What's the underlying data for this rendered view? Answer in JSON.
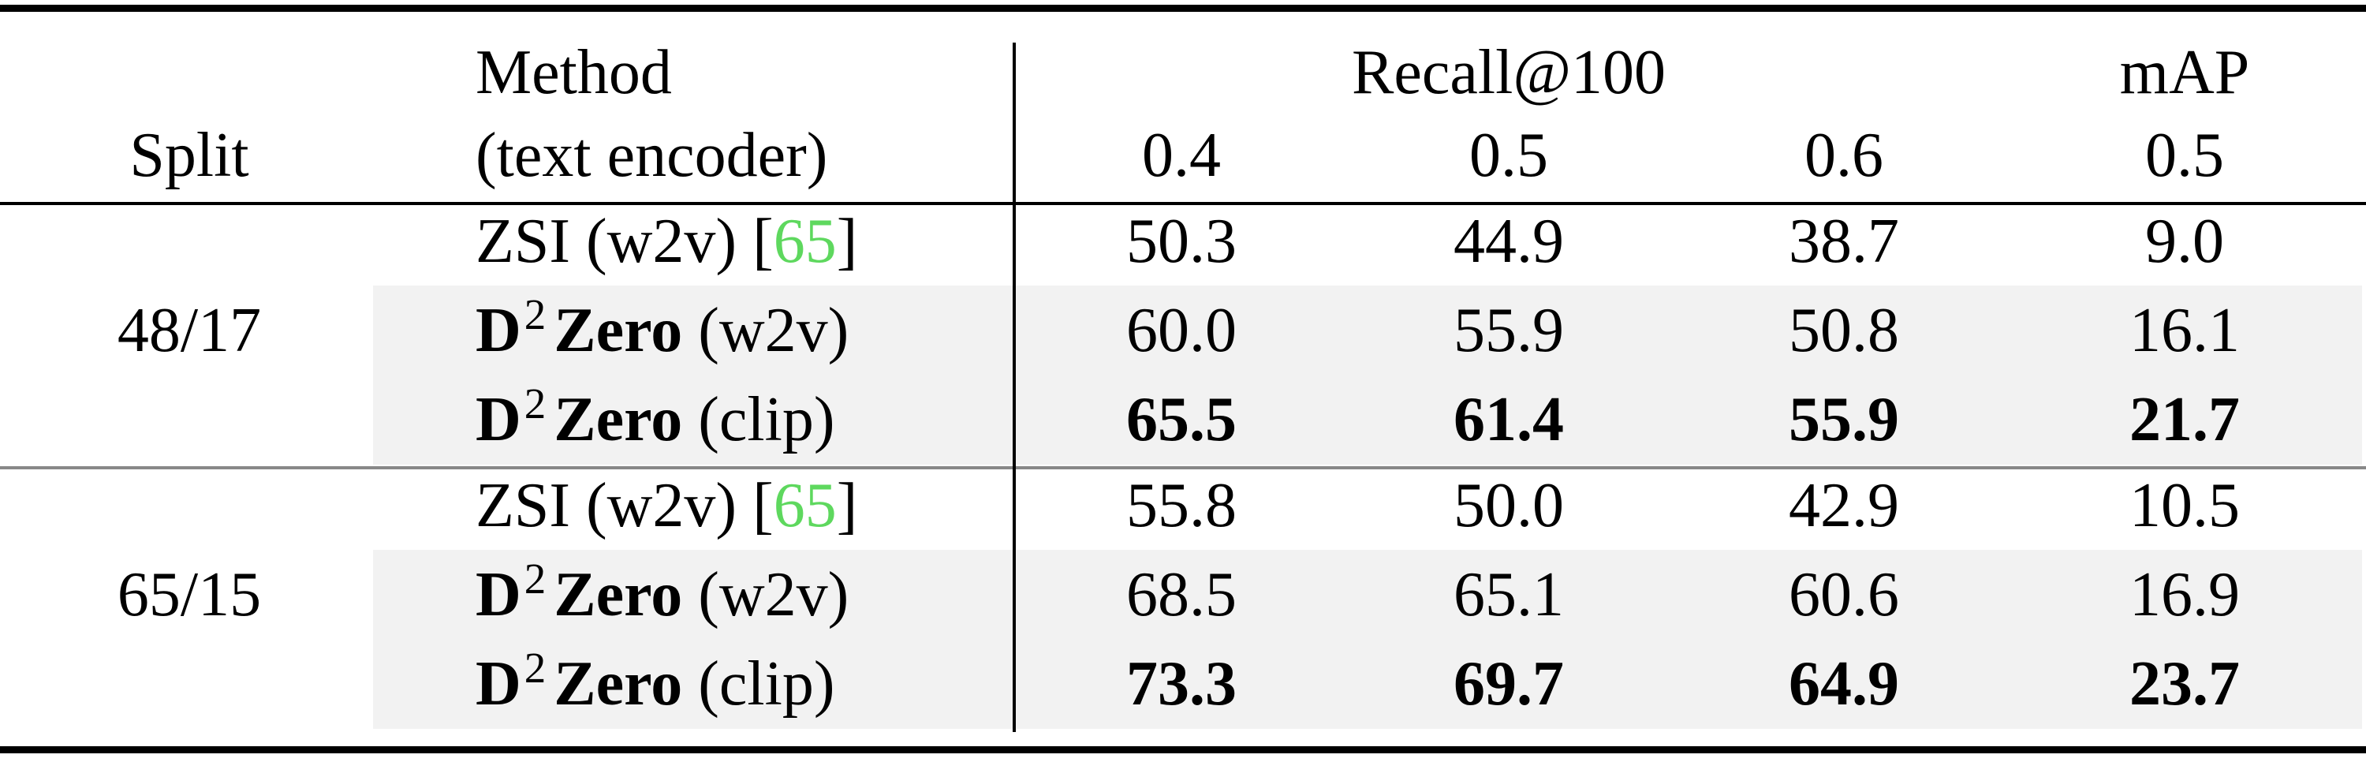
{
  "table": {
    "header": {
      "split": "Split",
      "method": "Method",
      "method_sub": "(text encoder)",
      "recall": "Recall@100",
      "map": "mAP",
      "thresholds": [
        "0.4",
        "0.5",
        "0.6",
        "0.5"
      ]
    },
    "groups": [
      {
        "split": "48/17",
        "rows": [
          {
            "method": {
              "base": "ZSI",
              "encoder": "(w2v)",
              "ref": [
                "[",
                "65",
                "]"
              ]
            },
            "values": [
              "50.3",
              "44.9",
              "38.7",
              "9.0"
            ],
            "bold": false,
            "shaded": false
          },
          {
            "method": {
              "base": "D",
              "sup": "2",
              "rest": "Zero",
              "encoder": "(w2v)"
            },
            "values": [
              "60.0",
              "55.9",
              "50.8",
              "16.1"
            ],
            "bold": false,
            "shaded": true
          },
          {
            "method": {
              "base": "D",
              "sup": "2",
              "rest": "Zero",
              "encoder": "(clip)"
            },
            "values": [
              "65.5",
              "61.4",
              "55.9",
              "21.7"
            ],
            "bold": true,
            "shaded": true
          }
        ]
      },
      {
        "split": "65/15",
        "rows": [
          {
            "method": {
              "base": "ZSI",
              "encoder": "(w2v)",
              "ref": [
                "[",
                "65",
                "]"
              ]
            },
            "values": [
              "55.8",
              "50.0",
              "42.9",
              "10.5"
            ],
            "bold": false,
            "shaded": false
          },
          {
            "method": {
              "base": "D",
              "sup": "2",
              "rest": "Zero",
              "encoder": "(w2v)"
            },
            "values": [
              "68.5",
              "65.1",
              "60.6",
              "16.9"
            ],
            "bold": false,
            "shaded": true
          },
          {
            "method": {
              "base": "D",
              "sup": "2",
              "rest": "Zero",
              "encoder": "(clip)"
            },
            "values": [
              "73.3",
              "69.7",
              "64.9",
              "23.7"
            ],
            "bold": true,
            "shaded": true
          }
        ]
      }
    ]
  }
}
